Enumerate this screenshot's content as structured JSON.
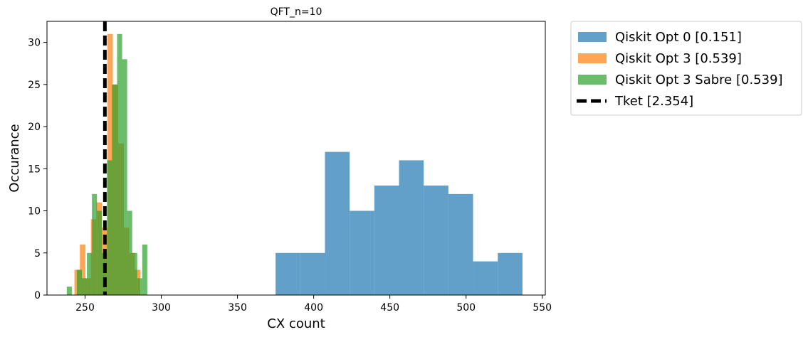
{
  "chart_data": {
    "type": "histogram",
    "title": "QFT_n=10",
    "xlabel": "CX count",
    "ylabel": "Occurance",
    "xlim": [
      225,
      552
    ],
    "ylim": [
      0,
      32.5
    ],
    "xticks": [
      250,
      300,
      350,
      400,
      450,
      500,
      550
    ],
    "yticks": [
      0,
      5,
      10,
      15,
      20,
      25,
      30
    ],
    "legend_position": "outside-upper-right",
    "series": [
      {
        "name": "Qiskit Opt 0 [0.151]",
        "color": "#1f77b4",
        "alpha": 0.7,
        "bin_edges": [
          375,
          391.2,
          407.4,
          423.6,
          439.8,
          456,
          472.2,
          488.4,
          504.6,
          520.8,
          537
        ],
        "counts": [
          5,
          5,
          17,
          10,
          13,
          16,
          13,
          12,
          4,
          5
        ]
      },
      {
        "name": "Qiskit Opt 3 [0.539]",
        "color": "#ff7f0e",
        "alpha": 0.7,
        "bin_edges": [
          243,
          246.6,
          250.2,
          253.8,
          257.4,
          261,
          264.6,
          268.2,
          271.8,
          275.4,
          279,
          282.6,
          286.2
        ],
        "counts": [
          3,
          6,
          2,
          9,
          11,
          8,
          31,
          25,
          18,
          8,
          5,
          3
        ]
      },
      {
        "name": "Qiskit Opt 3 Sabre [0.539]",
        "color": "#2ca02c",
        "alpha": 0.7,
        "bin_edges": [
          238,
          241.3,
          244.6,
          247.9,
          251.2,
          254.5,
          257.8,
          261.1,
          264.4,
          267.7,
          271,
          274.3,
          277.6,
          280.9,
          284.2,
          287.5,
          290.8
        ],
        "counts": [
          1,
          0,
          3,
          2,
          5,
          12,
          10,
          5,
          16,
          25,
          31,
          28,
          10,
          5,
          2,
          6
        ]
      }
    ],
    "vlines": [
      {
        "name": "Tket [2.354]",
        "x": 263,
        "color": "#000000",
        "style": "dashed"
      }
    ]
  }
}
